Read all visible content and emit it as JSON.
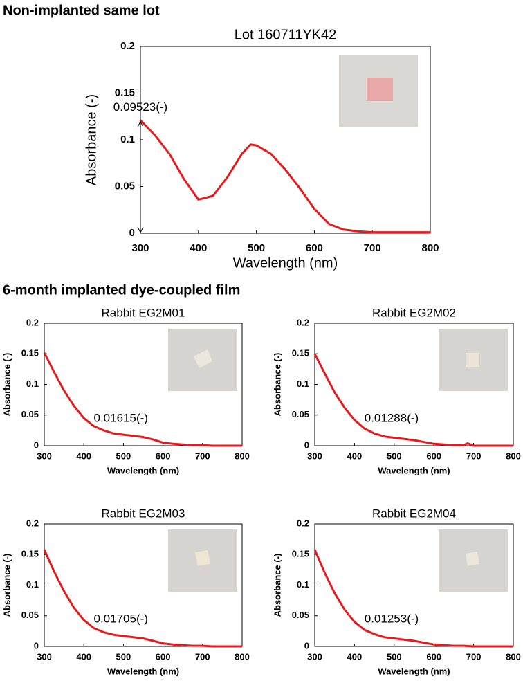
{
  "headings": [
    "Non-implanted same lot",
    "6-month implanted dye-coupled film"
  ],
  "chart_data": [
    {
      "type": "line",
      "title": "Lot 160711YK42",
      "xlabel": "Wavelength (nm)",
      "ylabel": "Absorbance (-)",
      "annotation": "0.09523(-)",
      "x": [
        300,
        325,
        350,
        375,
        400,
        425,
        450,
        475,
        490,
        500,
        525,
        550,
        575,
        600,
        625,
        650,
        675,
        700,
        725,
        750,
        775,
        800
      ],
      "series": [
        {
          "name": "Lot 160711YK42",
          "color": "#e8191c",
          "values": [
            0.121,
            0.105,
            0.085,
            0.058,
            0.036,
            0.04,
            0.06,
            0.085,
            0.095,
            0.094,
            0.085,
            0.068,
            0.048,
            0.026,
            0.01,
            0.004,
            0.002,
            0.001,
            0.001,
            0.001,
            0.001,
            0.001
          ]
        }
      ],
      "xlim": [
        300,
        800
      ],
      "ylim": [
        0,
        0.2
      ],
      "xticks": [
        300,
        400,
        500,
        600,
        700,
        800
      ],
      "yticks": [
        0,
        0.05,
        0.1,
        0.15,
        0.2
      ]
    },
    {
      "type": "line",
      "title": "Rabbit EG2M01",
      "xlabel": "Wavelength (nm)",
      "ylabel": "Absorbance (-)",
      "annotation": "0.01615(-)",
      "x": [
        300,
        325,
        350,
        375,
        400,
        425,
        450,
        475,
        500,
        525,
        550,
        575,
        600,
        625,
        650,
        675,
        700,
        725,
        750,
        775,
        800
      ],
      "series": [
        {
          "name": "Rabbit EG2M01",
          "color": "#e8191c",
          "values": [
            0.152,
            0.12,
            0.09,
            0.065,
            0.045,
            0.032,
            0.025,
            0.02,
            0.018,
            0.016,
            0.014,
            0.01,
            0.005,
            0.003,
            0.002,
            0.001,
            0.001,
            0.0,
            0.0,
            0.0,
            0.0
          ]
        }
      ],
      "xlim": [
        300,
        800
      ],
      "ylim": [
        0,
        0.2
      ],
      "xticks": [
        300,
        400,
        500,
        600,
        700,
        800
      ],
      "yticks": [
        0,
        0.05,
        0.1,
        0.15,
        0.2
      ]
    },
    {
      "type": "line",
      "title": "Rabbit EG2M02",
      "xlabel": "Wavelength (nm)",
      "ylabel": "Absorbance (-)",
      "annotation": "0.01288(-)",
      "x": [
        300,
        325,
        350,
        375,
        400,
        425,
        450,
        475,
        500,
        525,
        550,
        575,
        600,
        625,
        650,
        675,
        685,
        700,
        725,
        750,
        775,
        800
      ],
      "series": [
        {
          "name": "Rabbit EG2M02",
          "color": "#e8191c",
          "values": [
            0.15,
            0.118,
            0.087,
            0.062,
            0.042,
            0.028,
            0.02,
            0.015,
            0.013,
            0.011,
            0.009,
            0.006,
            0.003,
            0.002,
            0.001,
            0.001,
            0.004,
            0.0,
            0.0,
            0.0,
            0.0,
            0.0
          ]
        }
      ],
      "xlim": [
        300,
        800
      ],
      "ylim": [
        0,
        0.2
      ],
      "xticks": [
        300,
        400,
        500,
        600,
        700,
        800
      ],
      "yticks": [
        0,
        0.05,
        0.1,
        0.15,
        0.2
      ]
    },
    {
      "type": "line",
      "title": "Rabbit EG2M03",
      "xlabel": "Wavelength (nm)",
      "ylabel": "Absorbance (-)",
      "annotation": "0.01705(-)",
      "x": [
        300,
        325,
        350,
        375,
        400,
        425,
        450,
        475,
        500,
        525,
        550,
        575,
        600,
        625,
        650,
        675,
        700,
        725,
        750,
        775,
        800
      ],
      "series": [
        {
          "name": "Rabbit EG2M03",
          "color": "#e8191c",
          "values": [
            0.158,
            0.122,
            0.09,
            0.063,
            0.043,
            0.03,
            0.023,
            0.019,
            0.017,
            0.015,
            0.013,
            0.009,
            0.005,
            0.003,
            0.002,
            0.001,
            0.001,
            0.0,
            0.0,
            0.0,
            0.0
          ]
        }
      ],
      "xlim": [
        300,
        800
      ],
      "ylim": [
        0,
        0.2
      ],
      "xticks": [
        300,
        400,
        500,
        600,
        700,
        800
      ],
      "yticks": [
        0,
        0.05,
        0.1,
        0.15,
        0.2
      ]
    },
    {
      "type": "line",
      "title": "Rabbit EG2M04",
      "xlabel": "Wavelength (nm)",
      "ylabel": "Absorbance (-)",
      "annotation": "0.01253(-)",
      "x": [
        300,
        325,
        350,
        375,
        400,
        425,
        450,
        475,
        500,
        525,
        550,
        575,
        600,
        625,
        650,
        675,
        700,
        725,
        750,
        775,
        800
      ],
      "series": [
        {
          "name": "Rabbit EG2M04",
          "color": "#e8191c",
          "values": [
            0.158,
            0.12,
            0.087,
            0.06,
            0.04,
            0.027,
            0.02,
            0.015,
            0.013,
            0.011,
            0.009,
            0.006,
            0.003,
            0.002,
            0.001,
            0.001,
            0.0,
            0.0,
            0.0,
            0.0,
            0.0
          ]
        }
      ],
      "xlim": [
        300,
        800
      ],
      "ylim": [
        0,
        0.2
      ],
      "xticks": [
        300,
        400,
        500,
        600,
        700,
        800
      ],
      "yticks": [
        0,
        0.05,
        0.1,
        0.15,
        0.2
      ]
    }
  ]
}
